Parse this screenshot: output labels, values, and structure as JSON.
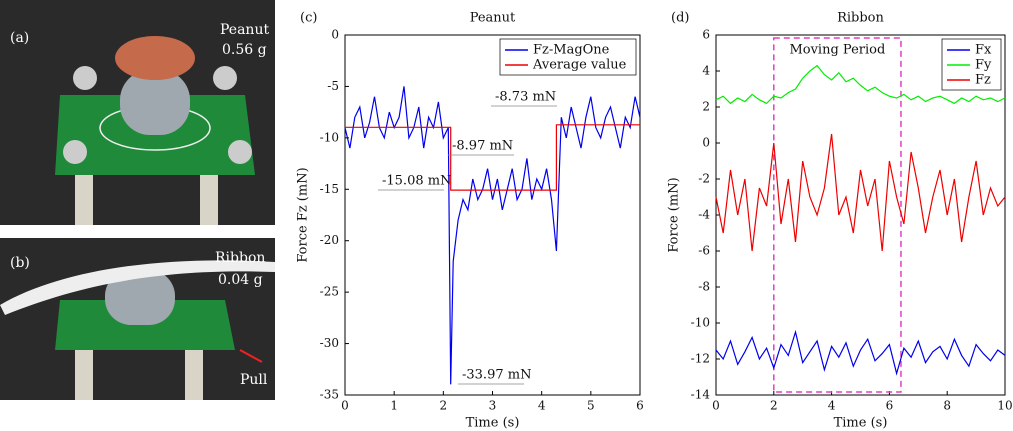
{
  "photos": {
    "a": {
      "label": "(a)",
      "object": "Peanut",
      "mass": "0.56 g"
    },
    "b": {
      "label": "(b)",
      "object": "Ribbon",
      "mass": "0.04 g",
      "arrow": "Pull"
    }
  },
  "chart_data": [
    {
      "type": "line",
      "panel_label": "(c)",
      "title": "Peanut",
      "xlabel": "Time (s)",
      "ylabel": "Force Fz (mN)",
      "xlim": [
        0,
        6
      ],
      "xticks": [
        0,
        1,
        2,
        3,
        4,
        5,
        6
      ],
      "ylim": [
        -35,
        0
      ],
      "yticks": [
        -35,
        -30,
        -25,
        -20,
        -15,
        -10,
        -5,
        0
      ],
      "legend": "upper right",
      "series": [
        {
          "name": "Fz-MagOne",
          "color": "#0000ee",
          "x": [
            0,
            0.1,
            0.2,
            0.3,
            0.4,
            0.5,
            0.6,
            0.7,
            0.8,
            0.9,
            1.0,
            1.1,
            1.2,
            1.3,
            1.4,
            1.5,
            1.6,
            1.7,
            1.8,
            1.9,
            2.0,
            2.1,
            2.15,
            2.2,
            2.3,
            2.4,
            2.5,
            2.6,
            2.7,
            2.8,
            2.9,
            3.0,
            3.1,
            3.2,
            3.3,
            3.4,
            3.5,
            3.6,
            3.7,
            3.8,
            3.9,
            4.0,
            4.1,
            4.2,
            4.3,
            4.4,
            4.5,
            4.6,
            4.7,
            4.8,
            4.9,
            5.0,
            5.1,
            5.2,
            5.3,
            5.4,
            5.5,
            5.6,
            5.7,
            5.8,
            5.9,
            6.0
          ],
          "values": [
            -9,
            -11,
            -8,
            -7,
            -10,
            -8.5,
            -6,
            -9,
            -10,
            -7.5,
            -9,
            -8,
            -5,
            -10,
            -9,
            -7,
            -11,
            -8,
            -9,
            -6.5,
            -10,
            -9,
            -33.97,
            -22,
            -18,
            -16,
            -17,
            -14,
            -16,
            -15,
            -13,
            -16,
            -14,
            -17,
            -15,
            -13,
            -16,
            -15,
            -12,
            -16,
            -14,
            -15,
            -13,
            -16,
            -21,
            -8,
            -10,
            -7,
            -9,
            -11,
            -8,
            -6,
            -9,
            -10,
            -8,
            -7,
            -9,
            -11,
            -8,
            -9,
            -6,
            -8
          ]
        },
        {
          "name": "Average value",
          "color": "#ee0000",
          "x": [
            0,
            2.15,
            2.15,
            4.3,
            4.3,
            6
          ],
          "values": [
            -8.97,
            -8.97,
            -15.08,
            -15.08,
            -8.73,
            -8.73
          ]
        }
      ],
      "annotations": [
        "-8.97 mN",
        "-15.08 mN",
        "-8.73 mN",
        "-33.97 mN"
      ]
    },
    {
      "type": "line",
      "panel_label": "(d)",
      "title": "Ribbon",
      "xlabel": "Time (s)",
      "ylabel": "Force (mN)",
      "xlim": [
        0,
        10
      ],
      "xticks": [
        0,
        2,
        4,
        6,
        8,
        10
      ],
      "ylim": [
        -14,
        6
      ],
      "yticks": [
        -14,
        -12,
        -10,
        -8,
        -6,
        -4,
        -2,
        0,
        2,
        4,
        6
      ],
      "legend": "upper right",
      "highlight": {
        "label": "Moving Period",
        "x": [
          2,
          6.4
        ],
        "color": "#e040c0"
      },
      "x": [
        0,
        0.25,
        0.5,
        0.75,
        1,
        1.25,
        1.5,
        1.75,
        2,
        2.25,
        2.5,
        2.75,
        3,
        3.25,
        3.5,
        3.75,
        4,
        4.25,
        4.5,
        4.75,
        5,
        5.25,
        5.5,
        5.75,
        6,
        6.25,
        6.5,
        6.75,
        7,
        7.25,
        7.5,
        7.75,
        8,
        8.25,
        8.5,
        8.75,
        9,
        9.25,
        9.5,
        9.75,
        10
      ],
      "series": [
        {
          "name": "Fx",
          "color": "#0000ee",
          "values": [
            -11.5,
            -12,
            -11,
            -12.3,
            -11.6,
            -10.8,
            -12,
            -11.4,
            -12.5,
            -11.2,
            -11.8,
            -10.5,
            -12.2,
            -11.6,
            -11,
            -12.6,
            -11.3,
            -11.9,
            -11.1,
            -12.4,
            -11.5,
            -10.9,
            -12.1,
            -11.7,
            -11.2,
            -12.8,
            -11.4,
            -11.9,
            -11,
            -12.2,
            -11.6,
            -11.3,
            -12,
            -10.9,
            -11.8,
            -12.4,
            -11.2,
            -11.7,
            -12.1,
            -11.5,
            -11.8
          ]
        },
        {
          "name": "Fy",
          "color": "#00ee00",
          "values": [
            2.4,
            2.6,
            2.2,
            2.5,
            2.3,
            2.7,
            2.4,
            2.2,
            2.6,
            2.5,
            2.8,
            3.0,
            3.6,
            4.0,
            4.3,
            3.8,
            3.5,
            3.9,
            3.4,
            3.6,
            3.2,
            2.9,
            3.1,
            2.8,
            2.6,
            2.5,
            2.7,
            2.4,
            2.6,
            2.3,
            2.5,
            2.6,
            2.4,
            2.2,
            2.5,
            2.3,
            2.6,
            2.4,
            2.5,
            2.3,
            2.5
          ]
        },
        {
          "name": "Fz",
          "color": "#ee0000",
          "values": [
            -3,
            -5,
            -1.5,
            -4,
            -2,
            -6,
            -2.5,
            -3.5,
            0,
            -4.5,
            -2,
            -5.5,
            -1,
            -3,
            -4,
            -2.5,
            0.5,
            -4,
            -3,
            -5,
            -1.5,
            -3.5,
            -2,
            -6,
            -1,
            -3,
            -4.5,
            -0.5,
            -2.5,
            -5,
            -3,
            -1.5,
            -4,
            -2,
            -5.5,
            -3,
            -1,
            -4,
            -2.5,
            -3.5,
            -3
          ]
        }
      ]
    }
  ]
}
